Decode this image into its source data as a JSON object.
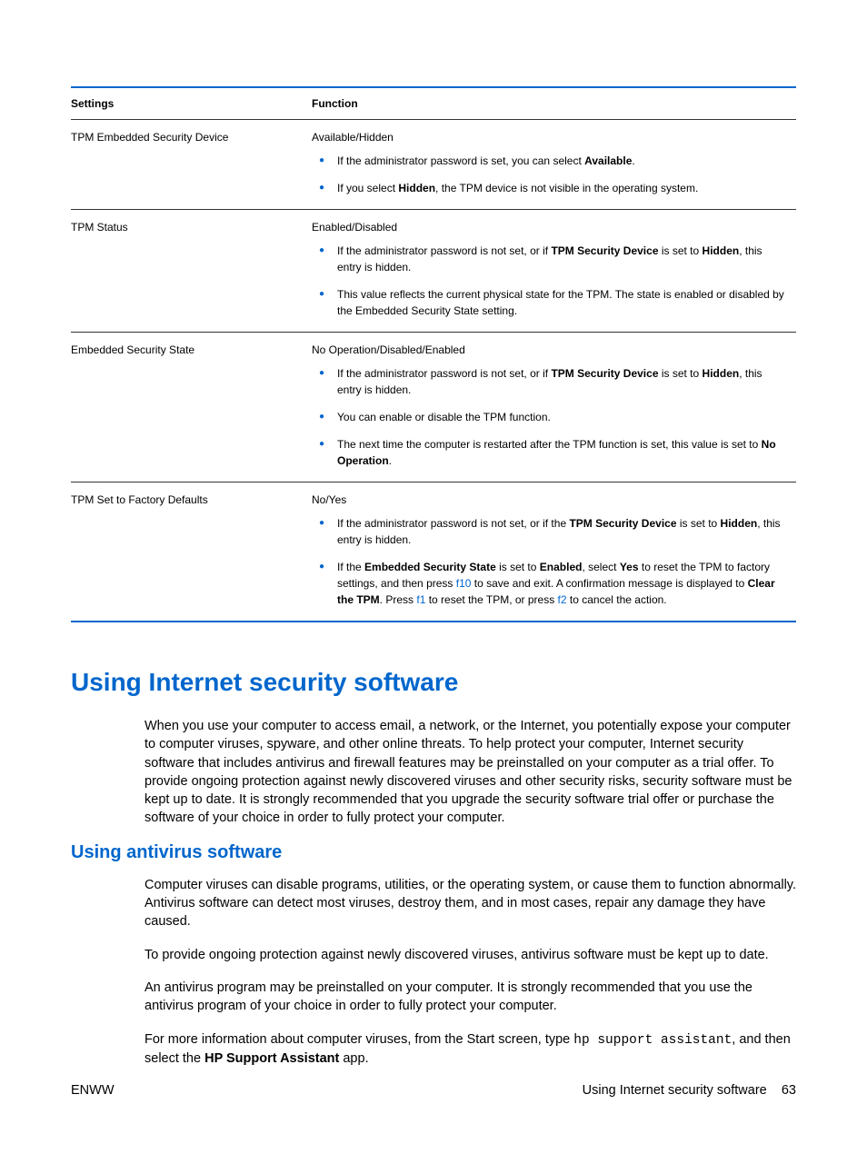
{
  "table": {
    "header": {
      "col1": "Settings",
      "col2": "Function"
    },
    "rows": [
      {
        "setting": "TPM Embedded Security Device",
        "head": "Available/Hidden",
        "bullets": [
          [
            {
              "t": "If the administrator password is set, you can select "
            },
            {
              "t": "Available",
              "b": true
            },
            {
              "t": "."
            }
          ],
          [
            {
              "t": "If you select "
            },
            {
              "t": "Hidden",
              "b": true
            },
            {
              "t": ", the TPM device is not visible in the operating system."
            }
          ]
        ]
      },
      {
        "setting": "TPM Status",
        "head": "Enabled/Disabled",
        "bullets": [
          [
            {
              "t": "If the administrator password is not set, or if "
            },
            {
              "t": "TPM Security Device",
              "b": true
            },
            {
              "t": " is set to "
            },
            {
              "t": "Hidden",
              "b": true
            },
            {
              "t": ", this entry is hidden."
            }
          ],
          [
            {
              "t": "This value reflects the current physical state for the TPM. The state is enabled or disabled by the Embedded Security State setting."
            }
          ]
        ]
      },
      {
        "setting": "Embedded Security State",
        "head": "No Operation/Disabled/Enabled",
        "bullets": [
          [
            {
              "t": "If the administrator password is not set, or if "
            },
            {
              "t": "TPM Security Device",
              "b": true
            },
            {
              "t": " is set to "
            },
            {
              "t": "Hidden",
              "b": true
            },
            {
              "t": ", this entry is hidden."
            }
          ],
          [
            {
              "t": "You can enable or disable the TPM function."
            }
          ],
          [
            {
              "t": "The next time the computer is restarted after the TPM function is set, this value is set to "
            },
            {
              "t": "No Operation",
              "b": true
            },
            {
              "t": "."
            }
          ]
        ]
      },
      {
        "setting": "TPM Set to Factory Defaults",
        "head": "No/Yes",
        "bullets": [
          [
            {
              "t": "If the administrator password is not set, or if the "
            },
            {
              "t": "TPM Security Device",
              "b": true
            },
            {
              "t": " is set to "
            },
            {
              "t": "Hidden",
              "b": true
            },
            {
              "t": ", this entry is hidden."
            }
          ],
          [
            {
              "t": "If the "
            },
            {
              "t": "Embedded Security State",
              "b": true
            },
            {
              "t": " is set to "
            },
            {
              "t": "Enabled",
              "b": true
            },
            {
              "t": ", select "
            },
            {
              "t": "Yes",
              "b": true
            },
            {
              "t": " to reset the TPM to factory settings, and then press "
            },
            {
              "t": "f10",
              "k": true
            },
            {
              "t": " to save and exit. A confirmation message is displayed to "
            },
            {
              "t": "Clear the TPM",
              "b": true
            },
            {
              "t": ". Press "
            },
            {
              "t": "f1",
              "k": true
            },
            {
              "t": " to reset the TPM, or press "
            },
            {
              "t": "f2",
              "k": true
            },
            {
              "t": " to cancel the action."
            }
          ]
        ]
      }
    ]
  },
  "section1": {
    "title": "Using Internet security software",
    "para1": "When you use your computer to access email, a network, or the Internet, you potentially expose your computer to computer viruses, spyware, and other online threats. To help protect your computer, Internet security software that includes antivirus and firewall features may be preinstalled on your computer as a trial offer. To provide ongoing protection against newly discovered viruses and other security risks, security software must be kept up to date. It is strongly recommended that you upgrade the security software trial offer or purchase the software of your choice in order to fully protect your computer."
  },
  "section2": {
    "title": "Using antivirus software",
    "para1": "Computer viruses can disable programs, utilities, or the operating system, or cause them to function abnormally. Antivirus software can detect most viruses, destroy them, and in most cases, repair any damage they have caused.",
    "para2": "To provide ongoing protection against newly discovered viruses, antivirus software must be kept up to date.",
    "para3": "An antivirus program may be preinstalled on your computer. It is strongly recommended that you use the antivirus program of your choice in order to fully protect your computer.",
    "para4_pre": "For more information about computer viruses, from the Start screen, type ",
    "para4_mono": "hp support assistant",
    "para4_mid": ", and then select the ",
    "para4_bold": "HP Support Assistant",
    "para4_post": " app."
  },
  "footer": {
    "left": "ENWW",
    "right_text": "Using Internet security software",
    "page": "63"
  }
}
